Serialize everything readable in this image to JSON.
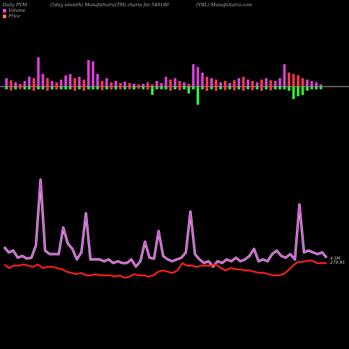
{
  "header": {
    "left": "Daily PVM",
    "center": "(5day smooth) MunafaSutra(TM) charts for 540180",
    "right": "(VBL) MunafaSutra.com"
  },
  "legend": [
    {
      "label": "Volume",
      "color": "#e040e0"
    },
    {
      "label": "Price",
      "color": "#f08040"
    }
  ],
  "colors": {
    "background": "#000000",
    "vol_up": "#e040e0",
    "vol_down": "#ff3a50",
    "vol_green": "#33ff33",
    "volume_line": "#d84de0",
    "price_line": "#ff2020",
    "baseline": "#ffffff"
  },
  "chart_data": [
    {
      "type": "bar",
      "title": "Daily PVM",
      "series": [
        {
          "name": "Volume",
          "values": [
            12,
            9,
            6,
            4,
            8,
            14,
            12,
            42,
            18,
            12,
            8,
            6,
            10,
            16,
            18,
            12,
            14,
            10,
            38,
            36,
            18,
            8,
            12,
            6,
            8,
            5,
            7,
            5,
            4,
            3,
            4,
            6,
            3,
            8,
            5,
            14,
            10,
            12,
            8,
            6,
            4,
            32,
            28,
            20,
            14,
            12,
            10,
            6,
            8,
            5,
            9,
            12,
            14,
            10,
            8,
            6,
            10,
            12,
            9,
            8,
            12,
            32,
            20,
            18,
            16,
            12,
            10,
            8,
            6,
            3
          ],
          "signs": [
            1,
            -1,
            1,
            -1,
            1,
            1,
            -1,
            1,
            1,
            -1,
            1,
            -1,
            1,
            1,
            1,
            -1,
            1,
            -1,
            1,
            1,
            1,
            -1,
            1,
            -1,
            1,
            -1,
            1,
            -1,
            1,
            -1,
            1,
            -1,
            -2,
            1,
            1,
            1,
            -1,
            1,
            -1,
            1,
            -2,
            1,
            1,
            1,
            -1,
            1,
            -1,
            1,
            -1,
            1,
            -1,
            1,
            -1,
            1,
            -1,
            1,
            -1,
            1,
            -1,
            1,
            1,
            1,
            -2,
            -2,
            -2,
            -2,
            1,
            1,
            1,
            1
          ]
        }
      ],
      "green_down_values": [
        0,
        0,
        0,
        0,
        0,
        0,
        0,
        0,
        0,
        0,
        0,
        0,
        0,
        0,
        0,
        0,
        0,
        0,
        0,
        0,
        0,
        0,
        0,
        0,
        0,
        0,
        0,
        0,
        0,
        0,
        0,
        0,
        12,
        0,
        0,
        0,
        0,
        0,
        0,
        0,
        10,
        0,
        26,
        0,
        0,
        0,
        0,
        0,
        0,
        0,
        0,
        0,
        0,
        0,
        0,
        0,
        0,
        0,
        0,
        0,
        0,
        0,
        0,
        18,
        14,
        12,
        6,
        0,
        0,
        0
      ]
    },
    {
      "type": "line",
      "series": [
        {
          "name": "Volume",
          "values": [
            52,
            46,
            48,
            40,
            42,
            39,
            40,
            54,
            128,
            48,
            44,
            44,
            44,
            74,
            56,
            50,
            38,
            46,
            90,
            38,
            38,
            38,
            36,
            38,
            34,
            36,
            34,
            34,
            38,
            30,
            36,
            58,
            40,
            39,
            70,
            42,
            38,
            36,
            38,
            40,
            46,
            92,
            44,
            38,
            34,
            36,
            30,
            36,
            34,
            38,
            36,
            40,
            36,
            38,
            42,
            50,
            36,
            38,
            36,
            44,
            48,
            42,
            40,
            44,
            38,
            100,
            46,
            48,
            46,
            44,
            46,
            40
          ]
        },
        {
          "name": "Price",
          "values": [
            35,
            32,
            34,
            34,
            35,
            34,
            33,
            35,
            32,
            33,
            33,
            32,
            31,
            29,
            28,
            27,
            28,
            26,
            26,
            27,
            26,
            26,
            26,
            25,
            26,
            24,
            25,
            27,
            26,
            26,
            25,
            26,
            29,
            30,
            29,
            28,
            30,
            36,
            34,
            34,
            33,
            34,
            34,
            34,
            35,
            32,
            30,
            32,
            31,
            31,
            30,
            30,
            29,
            28,
            28,
            27,
            26,
            26,
            27,
            30,
            34,
            37,
            37,
            38,
            38,
            36,
            36,
            36
          ]
        }
      ],
      "annotation": "4.5M",
      "price_label": "279.95"
    }
  ]
}
